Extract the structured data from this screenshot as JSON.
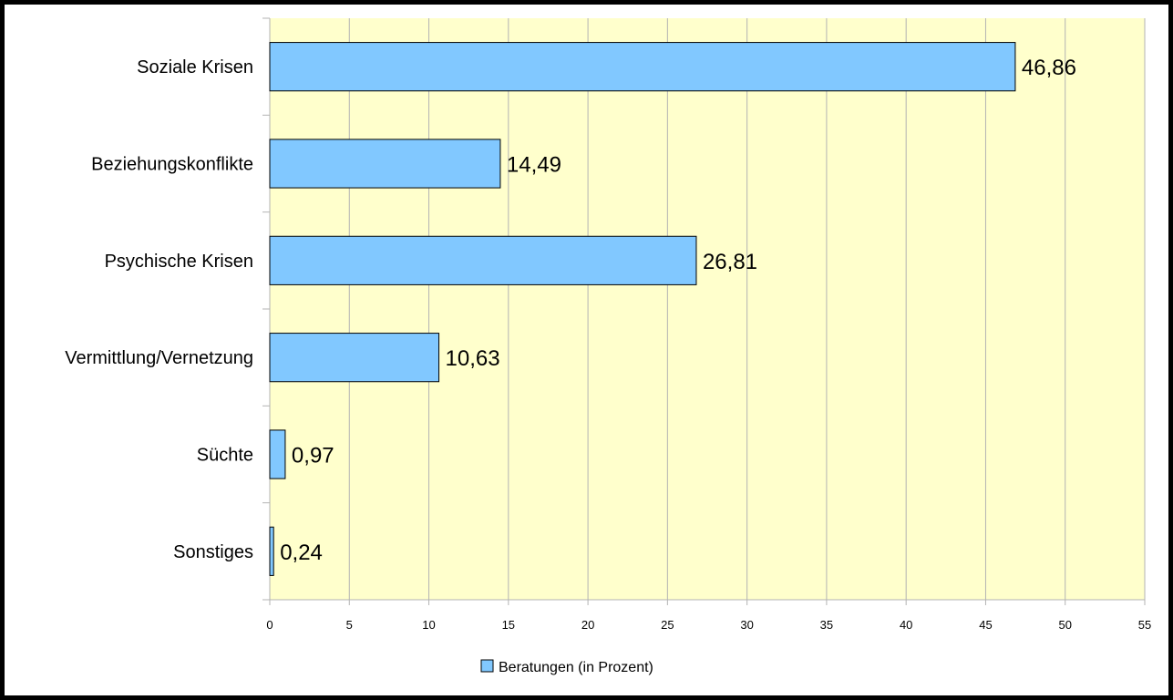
{
  "chart_data": {
    "type": "bar",
    "orientation": "horizontal",
    "categories": [
      "Soziale Krisen",
      "Beziehungskonflikte",
      "Psychische Krisen",
      "Vermittlung/Vernetzung",
      "Süchte",
      "Sonstiges"
    ],
    "value_labels": [
      "46,86",
      "14,49",
      "26,81",
      "10,63",
      "0,97",
      "0,24"
    ],
    "series": [
      {
        "name": "Beratungen (in Prozent)",
        "values": [
          46.86,
          14.49,
          26.81,
          10.63,
          0.97,
          0.24
        ]
      }
    ],
    "xlim": [
      0,
      55
    ],
    "xticks": [
      0,
      5,
      10,
      15,
      20,
      25,
      30,
      35,
      40,
      45,
      50,
      55
    ],
    "xlabel": "",
    "ylabel": "",
    "title": "",
    "grid": "vertical",
    "legend_position": "bottom",
    "colors": {
      "bar_fill": "#81c8ff",
      "bar_stroke": "#000000",
      "plot_background": "#ffffcc",
      "gridline": "#b3b3b3",
      "frame": "#000000"
    }
  }
}
